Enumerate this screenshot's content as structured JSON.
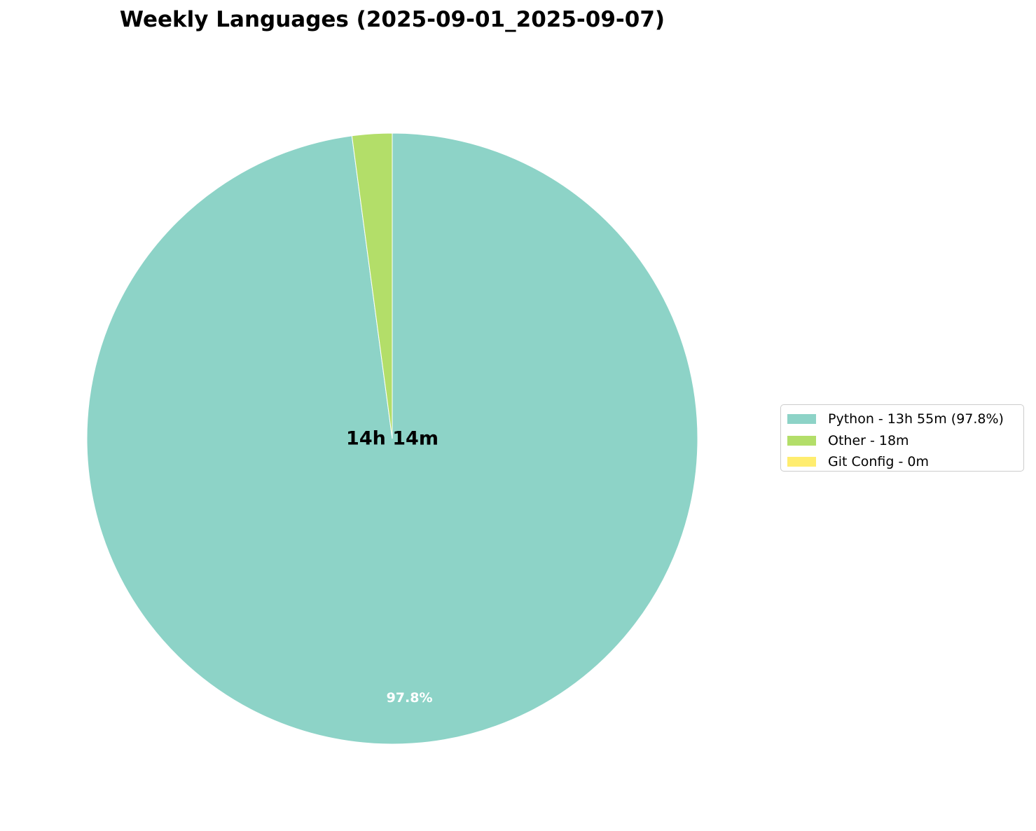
{
  "chart_data": {
    "type": "pie",
    "title": "Weekly Languages (2025-09-01_2025-09-07)",
    "center_label": "14h 14m",
    "start_angle_deg": 90,
    "direction": "clockwise",
    "slices": [
      {
        "label": "Python - 13h 55m (97.8%)",
        "value_minutes": 835,
        "percent": 97.8,
        "pct_label": "97.8%",
        "color": "#8dd3c7"
      },
      {
        "label": "Other - 18m",
        "value_minutes": 18,
        "percent": 2.1,
        "pct_label": "",
        "color": "#b3de69"
      },
      {
        "label": "Git Config - 0m",
        "value_minutes": 0,
        "percent": 0.0,
        "pct_label": "",
        "color": "#ffed6f"
      }
    ],
    "legend_position": "right"
  },
  "colors": {
    "slice_edge": "#ffffff",
    "pct_label_color": "#ffffff",
    "center_label_color": "#000000"
  }
}
